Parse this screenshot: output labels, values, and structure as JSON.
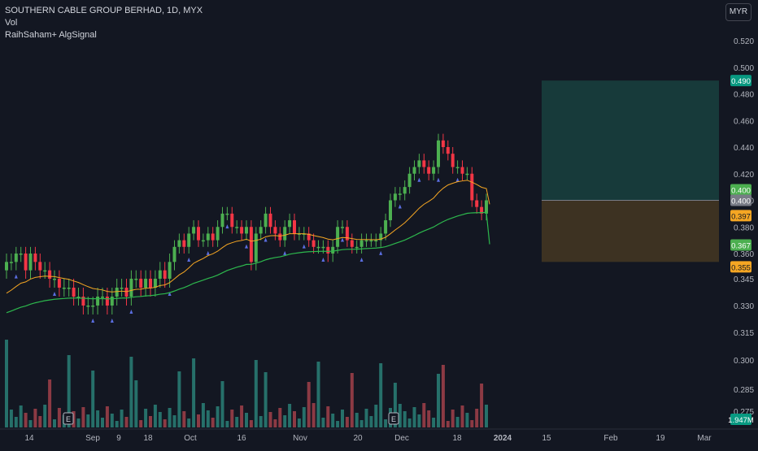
{
  "legend": {
    "symbol_line": "SOUTHERN CABLE GROUP BERHAD, 1D, MYX",
    "volume_label": "Vol",
    "indicator_label": "RaihSaham+ AlgSignal"
  },
  "currency": "MYR",
  "colors": {
    "background": "#131722",
    "up": "#4caf50",
    "down": "#f23645",
    "ema_fast": "#f5a623",
    "ema_slow": "#2db84d",
    "vol_up": "#26706a",
    "vol_down": "#8c3a44",
    "target_zone": "#173a3a",
    "stop_zone": "#3d3222",
    "signal_buy": "#5b6ee1",
    "signal_sell": "#f5a623"
  },
  "chart_data": {
    "type": "candlestick",
    "title": "SOUTHERN CABLE GROUP BERHAD, 1D, MYX",
    "currency": "MYR",
    "price_axis_ticks": [
      "0.520",
      "0.500",
      "0.480",
      "0.460",
      "0.440",
      "0.420",
      "0.400",
      "0.380",
      "0.360",
      "0.345",
      "0.330",
      "0.315",
      "0.300",
      "0.285",
      "0.275"
    ],
    "time_axis_ticks": [
      "14",
      "Sep",
      "9",
      "18",
      "Oct",
      "16",
      "Nov",
      "20",
      "Dec",
      "18",
      "2024",
      "15",
      "Feb",
      "19",
      "Mar"
    ],
    "price_tags": [
      {
        "label": "0.490",
        "color": "#089981"
      },
      {
        "label": "0.400",
        "color": "#4caf50"
      },
      {
        "label": "0.400",
        "color": "#787b86"
      },
      {
        "label": "0.397",
        "color": "#f5a623"
      },
      {
        "label": "0.367",
        "color": "#4caf50"
      },
      {
        "label": "0.355",
        "color": "#f5a623"
      },
      {
        "label": "1.947M",
        "color": "#089981"
      }
    ],
    "earnings_markers": [
      "E",
      "E"
    ],
    "position": {
      "entry": 0.4,
      "target": 0.49,
      "stop": 0.355
    },
    "close": [
      0.355,
      0.355,
      0.36,
      0.36,
      0.35,
      0.36,
      0.355,
      0.35,
      0.35,
      0.345,
      0.345,
      0.34,
      0.34,
      0.34,
      0.335,
      0.335,
      0.33,
      0.33,
      0.33,
      0.335,
      0.335,
      0.33,
      0.335,
      0.34,
      0.34,
      0.335,
      0.345,
      0.345,
      0.34,
      0.345,
      0.34,
      0.345,
      0.35,
      0.345,
      0.355,
      0.365,
      0.37,
      0.365,
      0.375,
      0.38,
      0.37,
      0.37,
      0.375,
      0.37,
      0.38,
      0.39,
      0.39,
      0.38,
      0.38,
      0.375,
      0.38,
      0.355,
      0.375,
      0.38,
      0.39,
      0.38,
      0.375,
      0.37,
      0.38,
      0.385,
      0.375,
      0.375,
      0.375,
      0.37,
      0.365,
      0.365,
      0.365,
      0.36,
      0.365,
      0.38,
      0.38,
      0.37,
      0.365,
      0.365,
      0.37,
      0.37,
      0.37,
      0.37,
      0.375,
      0.385,
      0.4,
      0.405,
      0.405,
      0.41,
      0.42,
      0.425,
      0.43,
      0.425,
      0.42,
      0.425,
      0.445,
      0.44,
      0.435,
      0.425,
      0.425,
      0.42,
      0.42,
      0.4,
      0.395,
      0.39,
      0.4
    ],
    "ema_fast_end": 0.397,
    "ema_slow_end": 0.367,
    "volume_last": "1.947M"
  }
}
